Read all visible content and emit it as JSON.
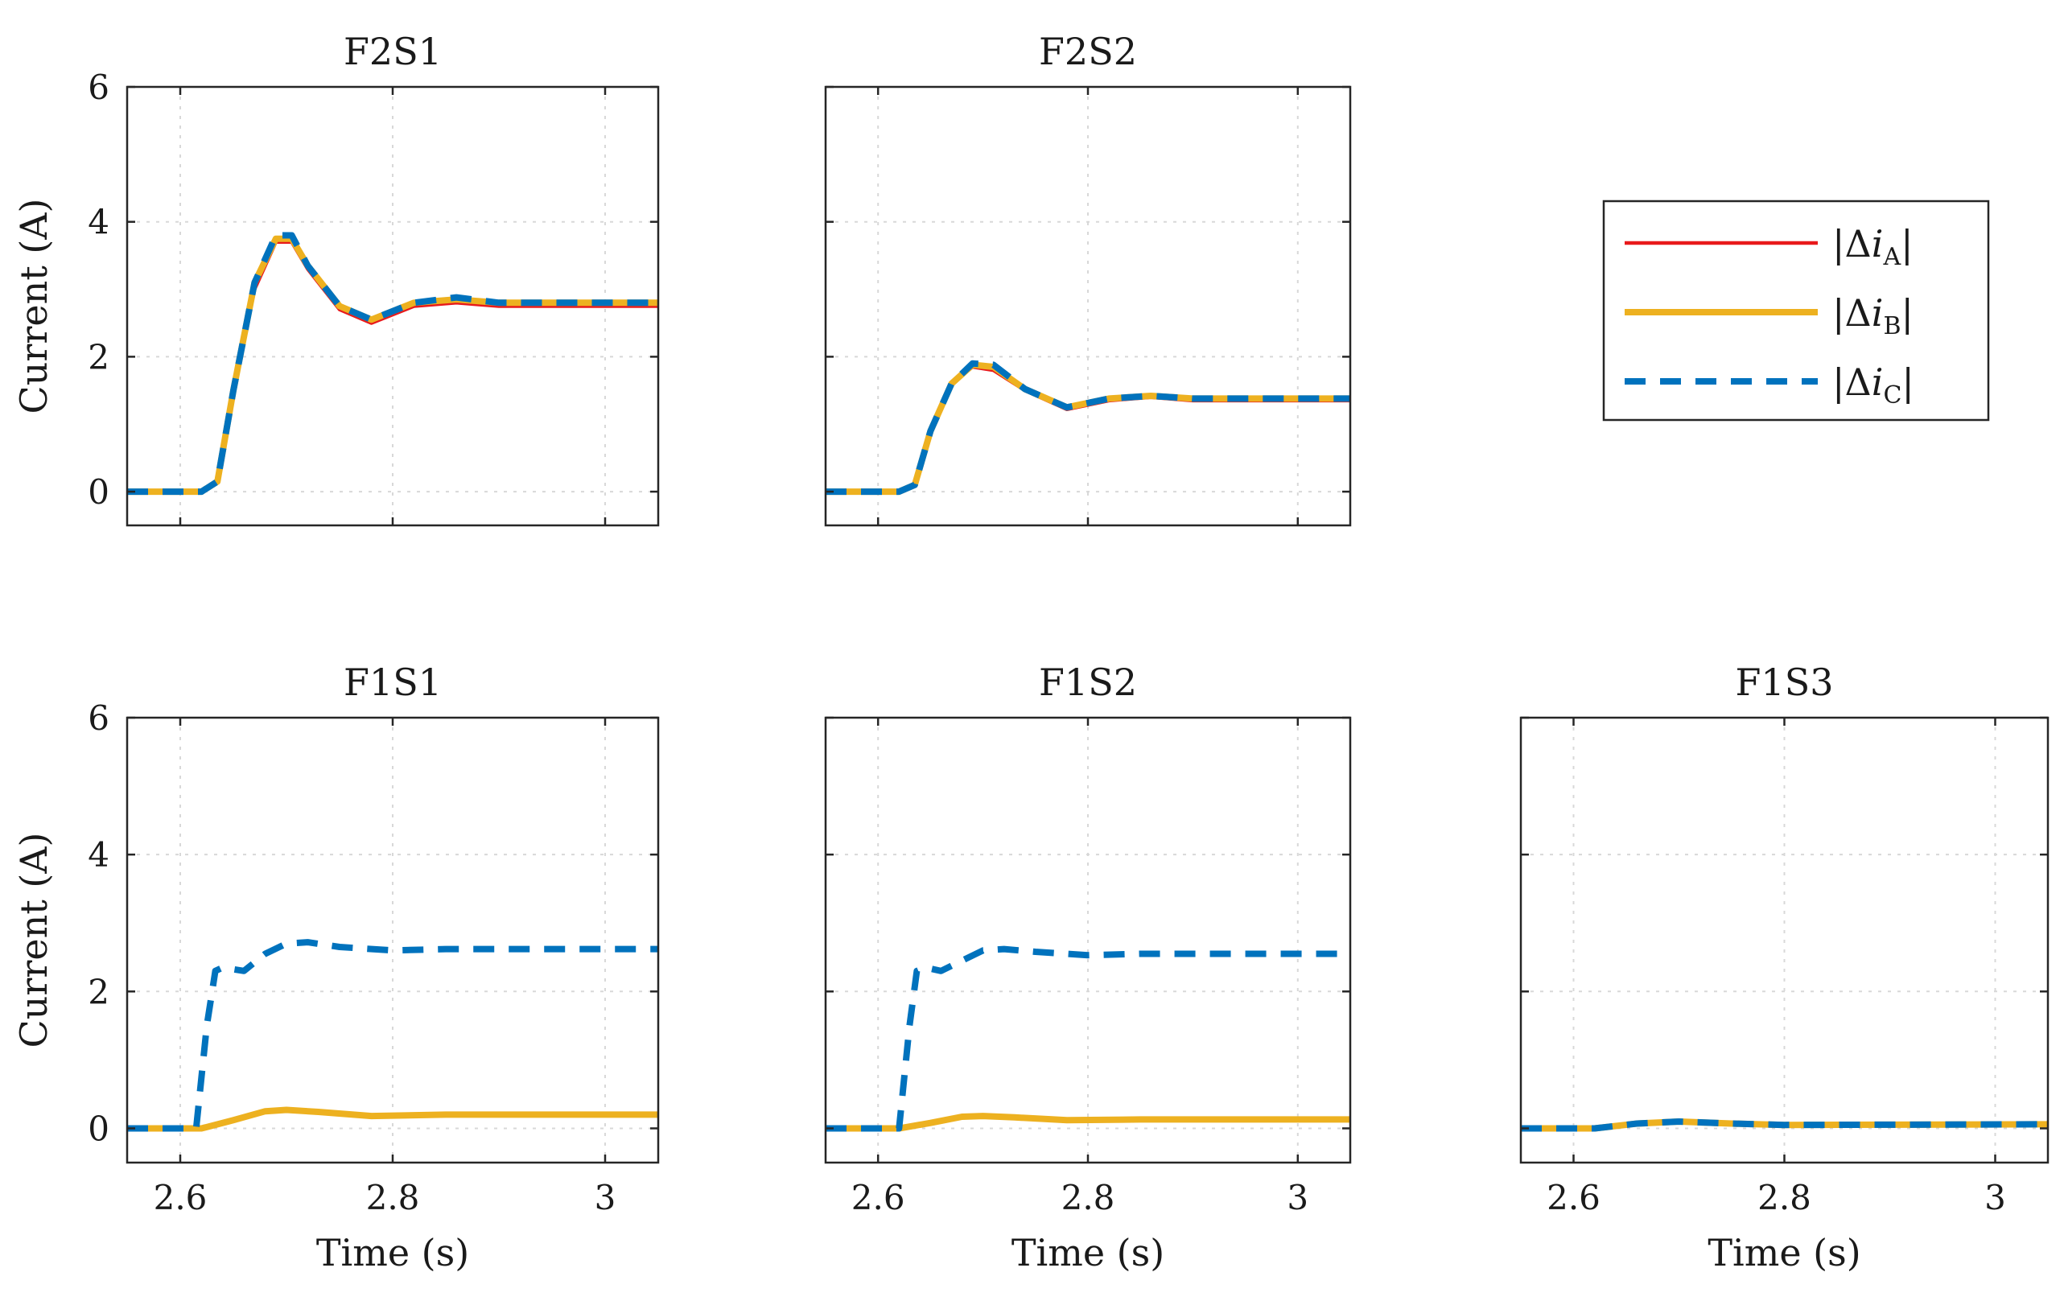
{
  "colors": {
    "dia": "#e8191b",
    "dib": "#edb120",
    "dic": "#0072bd",
    "grid": "#d8d8d8",
    "axis": "#262626"
  },
  "legend": {
    "entries": [
      {
        "key": "dia",
        "label_pre": "|Δ",
        "label_var": "i",
        "label_sub": "A",
        "label_post": "|",
        "style": "solid"
      },
      {
        "key": "dib",
        "label_pre": "|Δ",
        "label_var": "i",
        "label_sub": "B",
        "label_post": "|",
        "style": "solid"
      },
      {
        "key": "dic",
        "label_pre": "|Δ",
        "label_var": "i",
        "label_sub": "C",
        "label_post": "|",
        "style": "dashed"
      }
    ]
  },
  "chart_data": [
    {
      "type": "line",
      "title": "F2S1",
      "xlabel": "",
      "ylabel": "Current (A)",
      "xlim": [
        2.55,
        3.05
      ],
      "ylim": [
        -0.5,
        6
      ],
      "xticks": [
        2.6,
        2.8,
        3.0
      ],
      "xticklabels": [
        "",
        "",
        ""
      ],
      "yticks": [
        0,
        2,
        4,
        6
      ],
      "yticklabels": [
        "0",
        "2",
        "4",
        "6"
      ],
      "grid": true,
      "series": [
        {
          "key": "dia",
          "x": [
            2.55,
            2.62,
            2.635,
            2.65,
            2.67,
            2.69,
            2.705,
            2.72,
            2.75,
            2.78,
            2.82,
            2.86,
            2.9,
            2.95,
            3.05
          ],
          "y": [
            0,
            0,
            0.15,
            1.5,
            3.0,
            3.7,
            3.7,
            3.3,
            2.7,
            2.5,
            2.75,
            2.8,
            2.75,
            2.75,
            2.75
          ]
        },
        {
          "key": "dib",
          "x": [
            2.55,
            2.62,
            2.635,
            2.65,
            2.67,
            2.69,
            2.705,
            2.72,
            2.75,
            2.78,
            2.82,
            2.86,
            2.9,
            2.95,
            3.05
          ],
          "y": [
            0,
            0,
            0.15,
            1.5,
            3.1,
            3.75,
            3.75,
            3.35,
            2.75,
            2.55,
            2.8,
            2.85,
            2.8,
            2.8,
            2.8
          ]
        },
        {
          "key": "dic",
          "x": [
            2.55,
            2.62,
            2.635,
            2.65,
            2.67,
            2.69,
            2.705,
            2.72,
            2.75,
            2.78,
            2.82,
            2.86,
            2.9,
            2.95,
            3.05
          ],
          "y": [
            0,
            0,
            0.15,
            1.5,
            3.1,
            3.8,
            3.8,
            3.35,
            2.75,
            2.55,
            2.8,
            2.88,
            2.8,
            2.8,
            2.8
          ]
        }
      ]
    },
    {
      "type": "line",
      "title": "F2S2",
      "xlabel": "",
      "ylabel": "",
      "xlim": [
        2.55,
        3.05
      ],
      "ylim": [
        -0.5,
        6
      ],
      "xticks": [
        2.6,
        2.8,
        3.0
      ],
      "xticklabels": [
        "",
        "",
        ""
      ],
      "yticks": [
        0,
        2,
        4,
        6
      ],
      "yticklabels": [
        "",
        "",
        "",
        ""
      ],
      "grid": true,
      "series": [
        {
          "key": "dia",
          "x": [
            2.55,
            2.62,
            2.635,
            2.65,
            2.67,
            2.69,
            2.71,
            2.74,
            2.78,
            2.82,
            2.86,
            2.9,
            3.05
          ],
          "y": [
            0,
            0,
            0.1,
            0.9,
            1.6,
            1.85,
            1.8,
            1.5,
            1.22,
            1.35,
            1.4,
            1.35,
            1.35
          ]
        },
        {
          "key": "dib",
          "x": [
            2.55,
            2.62,
            2.635,
            2.65,
            2.67,
            2.69,
            2.71,
            2.74,
            2.78,
            2.82,
            2.86,
            2.9,
            3.05
          ],
          "y": [
            0,
            0,
            0.1,
            0.9,
            1.6,
            1.88,
            1.85,
            1.52,
            1.25,
            1.38,
            1.42,
            1.38,
            1.38
          ]
        },
        {
          "key": "dic",
          "x": [
            2.55,
            2.62,
            2.635,
            2.65,
            2.67,
            2.69,
            2.71,
            2.74,
            2.78,
            2.82,
            2.86,
            2.9,
            3.05
          ],
          "y": [
            0,
            0,
            0.1,
            0.9,
            1.6,
            1.9,
            1.88,
            1.52,
            1.25,
            1.38,
            1.42,
            1.38,
            1.38
          ]
        }
      ]
    },
    {
      "type": "line",
      "title": "F1S1",
      "xlabel": "Time (s)",
      "ylabel": "Current (A)",
      "xlim": [
        2.55,
        3.05
      ],
      "ylim": [
        -0.5,
        6
      ],
      "xticks": [
        2.6,
        2.8,
        3.0
      ],
      "xticklabels": [
        "2.6",
        "2.8",
        "3"
      ],
      "yticks": [
        0,
        2,
        4,
        6
      ],
      "yticklabels": [
        "0",
        "2",
        "4",
        "6"
      ],
      "grid": true,
      "series": [
        {
          "key": "dia",
          "x": [
            2.55,
            2.62,
            2.65,
            2.68,
            2.7,
            2.73,
            2.78,
            2.85,
            3.05
          ],
          "y": [
            0,
            0,
            0.12,
            0.25,
            0.27,
            0.24,
            0.18,
            0.2,
            0.2
          ]
        },
        {
          "key": "dib",
          "x": [
            2.55,
            2.62,
            2.65,
            2.68,
            2.7,
            2.73,
            2.78,
            2.85,
            3.05
          ],
          "y": [
            0,
            0,
            0.12,
            0.25,
            0.27,
            0.24,
            0.18,
            0.2,
            0.2
          ]
        },
        {
          "key": "dic",
          "x": [
            2.55,
            2.615,
            2.625,
            2.633,
            2.64,
            2.66,
            2.68,
            2.7,
            2.72,
            2.75,
            2.8,
            2.85,
            3.05
          ],
          "y": [
            0,
            0,
            1.5,
            2.3,
            2.35,
            2.3,
            2.55,
            2.7,
            2.72,
            2.65,
            2.6,
            2.62,
            2.62
          ]
        }
      ]
    },
    {
      "type": "line",
      "title": "F1S2",
      "xlabel": "Time (s)",
      "ylabel": "",
      "xlim": [
        2.55,
        3.05
      ],
      "ylim": [
        -0.5,
        6
      ],
      "xticks": [
        2.6,
        2.8,
        3.0
      ],
      "xticklabels": [
        "2.6",
        "2.8",
        "3"
      ],
      "yticks": [
        0,
        2,
        4,
        6
      ],
      "yticklabels": [
        "",
        "",
        "",
        ""
      ],
      "grid": true,
      "series": [
        {
          "key": "dia",
          "x": [
            2.55,
            2.62,
            2.65,
            2.68,
            2.7,
            2.73,
            2.78,
            2.85,
            3.05
          ],
          "y": [
            0,
            0,
            0.08,
            0.17,
            0.18,
            0.16,
            0.12,
            0.13,
            0.13
          ]
        },
        {
          "key": "dib",
          "x": [
            2.55,
            2.62,
            2.65,
            2.68,
            2.7,
            2.73,
            2.78,
            2.85,
            3.05
          ],
          "y": [
            0,
            0,
            0.08,
            0.17,
            0.18,
            0.16,
            0.12,
            0.13,
            0.13
          ]
        },
        {
          "key": "dic",
          "x": [
            2.55,
            2.62,
            2.63,
            2.637,
            2.645,
            2.66,
            2.68,
            2.7,
            2.72,
            2.75,
            2.8,
            2.85,
            3.05
          ],
          "y": [
            0,
            0,
            1.5,
            2.3,
            2.35,
            2.3,
            2.45,
            2.6,
            2.62,
            2.58,
            2.53,
            2.55,
            2.55
          ]
        }
      ]
    },
    {
      "type": "line",
      "title": "F1S3",
      "xlabel": "Time (s)",
      "ylabel": "",
      "xlim": [
        2.55,
        3.05
      ],
      "ylim": [
        -0.5,
        6
      ],
      "xticks": [
        2.6,
        2.8,
        3.0
      ],
      "xticklabels": [
        "2.6",
        "2.8",
        "3"
      ],
      "yticks": [
        0,
        2,
        4,
        6
      ],
      "yticklabels": [
        "",
        "",
        "",
        ""
      ],
      "grid": true,
      "series": [
        {
          "key": "dia",
          "x": [
            2.55,
            2.62,
            2.66,
            2.7,
            2.75,
            2.8,
            3.05
          ],
          "y": [
            0,
            0,
            0.07,
            0.1,
            0.07,
            0.05,
            0.06
          ]
        },
        {
          "key": "dib",
          "x": [
            2.55,
            2.62,
            2.66,
            2.7,
            2.75,
            2.8,
            3.05
          ],
          "y": [
            0,
            0,
            0.07,
            0.1,
            0.07,
            0.05,
            0.06
          ]
        },
        {
          "key": "dic",
          "x": [
            2.55,
            2.62,
            2.66,
            2.7,
            2.75,
            2.8,
            3.05
          ],
          "y": [
            0,
            0,
            0.07,
            0.1,
            0.07,
            0.05,
            0.06
          ]
        }
      ]
    }
  ]
}
